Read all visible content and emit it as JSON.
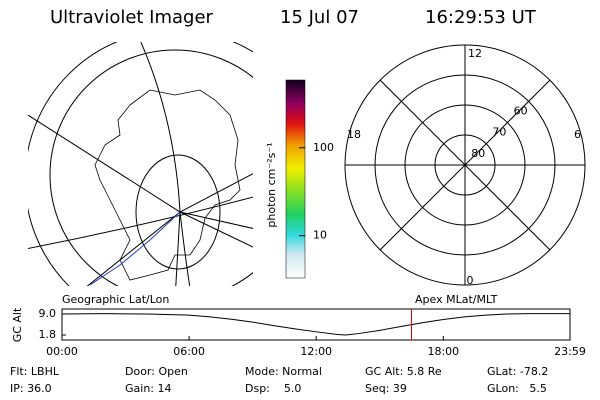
{
  "header": {
    "title": "Ultraviolet Imager",
    "date": "15 Jul 07",
    "time": "16:29:53 UT"
  },
  "map": {
    "label": "Geographic Lat/Lon"
  },
  "colorbar": {
    "label": "photon cm⁻²s⁻¹",
    "log": true,
    "ylim": [
      3.3,
      590
    ],
    "yticks": [
      10,
      100
    ]
  },
  "polar": {
    "label": "Apex MLat/MLT",
    "rlim": [
      90,
      50
    ],
    "rticks": [
      60,
      70,
      80
    ],
    "hour_labels": {
      "top": "12",
      "left": "18",
      "right": "6",
      "bottom": "0"
    }
  },
  "chart_data": {
    "type": "line",
    "ylabel": "GC Alt",
    "color": "#000000",
    "x": [
      0,
      2,
      4,
      6,
      7,
      8,
      9,
      10,
      11,
      12,
      13,
      13.4,
      14,
      15,
      16,
      17,
      18,
      19,
      20,
      21,
      22,
      24
    ],
    "values": [
      9.0,
      9.1,
      9.0,
      8.6,
      8.0,
      7.2,
      6.2,
      5.0,
      3.9,
      2.9,
      2.0,
      1.8,
      2.3,
      3.4,
      4.7,
      6.0,
      7.1,
      8.0,
      8.6,
      9.0,
      9.1,
      9.1
    ],
    "xlim": [
      0,
      23.98
    ],
    "ylim": [
      0.1,
      10.7
    ],
    "xticks": [
      {
        "value": 0,
        "label": "00:00"
      },
      {
        "value": 6,
        "label": "06:00"
      },
      {
        "value": 12,
        "label": "12:00"
      },
      {
        "value": 18,
        "label": "18:00"
      },
      {
        "value": 23.98,
        "label": "23:59"
      }
    ],
    "yticks": [
      {
        "value": 1.8,
        "label": "1.8"
      },
      {
        "value": 9.0,
        "label": "9.0"
      }
    ],
    "marker_x": 16.498,
    "marker_color": "#e00000"
  },
  "status": [
    [
      "Flt: LBHL",
      "IP: 36.0"
    ],
    [
      "Door: Open",
      "Gain: 14"
    ],
    [
      "Mode: Normal",
      "Dsp:    5.0"
    ],
    [
      "GC Alt: 5.8 Re",
      "Seq: 39"
    ],
    [
      "GLat: -78.2",
      "GLon:   5.5"
    ]
  ]
}
